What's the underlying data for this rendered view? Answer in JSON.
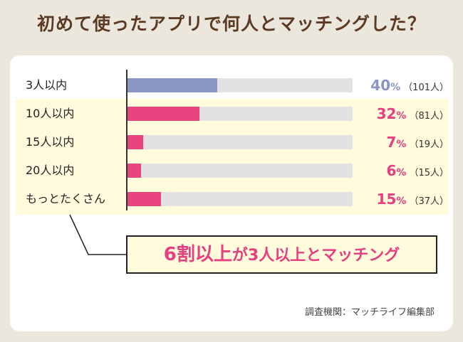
{
  "title": "初めて使ったアプリで何人とマッチングした？",
  "colors": {
    "first_bar": "#8a95c6",
    "other_bars": "#e9447f",
    "track": "#e2e2e2",
    "first_text": "#8a95c6",
    "other_text": "#e63e7f"
  },
  "chart_data": {
    "type": "bar",
    "orientation": "horizontal",
    "categories": [
      "3人以内",
      "10人以内",
      "15人以内",
      "20人以内",
      "もっとたくさん"
    ],
    "values": [
      40,
      32,
      7,
      6,
      15
    ],
    "value_labels": [
      "40",
      "32",
      "7",
      "6",
      "15"
    ],
    "unit": "%",
    "counts": [
      "（101人）",
      "（81人）",
      "（19人）",
      "（15人）",
      "（37人）"
    ],
    "xlim": [
      0,
      100
    ]
  },
  "callout": {
    "highlight": "6割以上",
    "rest": "が3人以上とマッチング"
  },
  "source": "調査機関：マッチライフ編集部"
}
